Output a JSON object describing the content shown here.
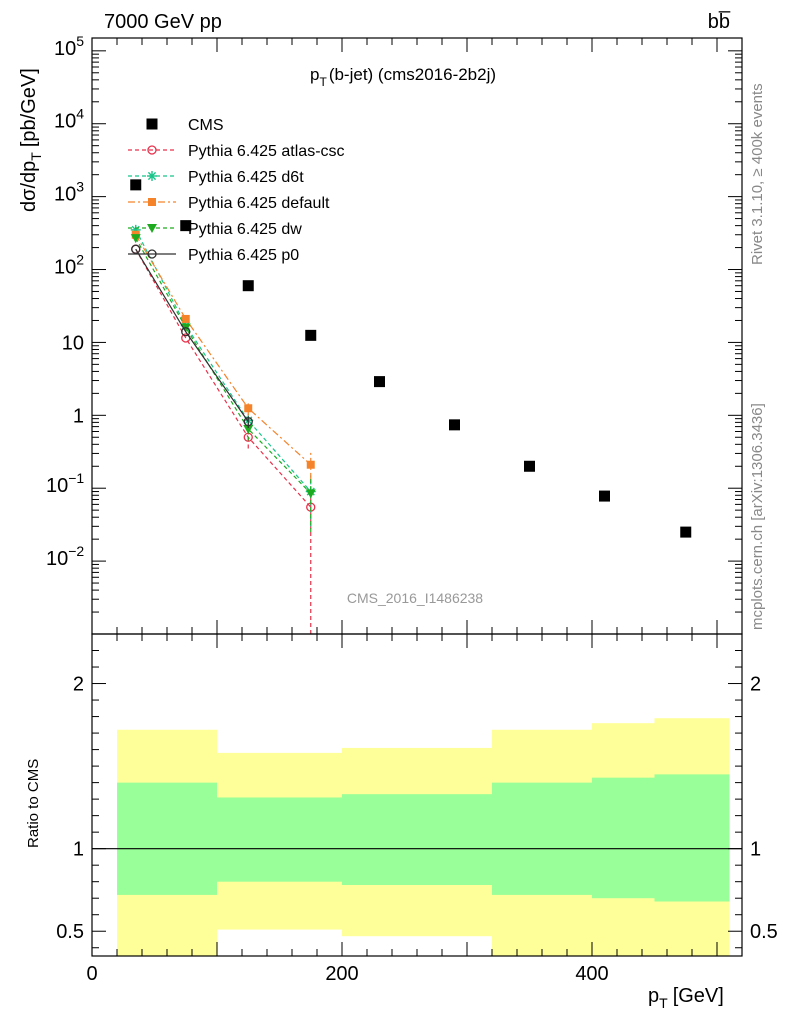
{
  "header": {
    "energy_label": "7000 GeV pp",
    "process_label": "bb̅"
  },
  "side_labels": {
    "rivet": "Rivet 3.1.10, ≥ 400k events",
    "mcplots": "mcplots.cern.ch [arXiv:1306.3436]"
  },
  "plot_title": {
    "main": "p",
    "sub": "T",
    "rest": "(b-jet) (cms2016-2b2j)"
  },
  "watermark": "CMS_2016_I1486238",
  "axes": {
    "ylabel_main": "dσ/dp",
    "ylabel_sub": "T",
    "ylabel_unit": "[pb/GeV]",
    "xlabel_main": "p",
    "xlabel_sub": "T",
    "xlabel_unit": "[GeV]",
    "ratio_ylabel": "Ratio to CMS"
  },
  "colors": {
    "atlas_csc": "#e8304a",
    "d6t": "#19c48a",
    "default": "#f5832a",
    "dw": "#1eaa1e",
    "p0": "#303030",
    "band_inner": "#99ff99",
    "band_outer": "#ffff99"
  },
  "chart_data": [
    {
      "type": "scatter",
      "log_y": true,
      "xlim": [
        0,
        520
      ],
      "ylim": [
        0.001,
        150000
      ],
      "xticks": [
        0,
        200,
        400
      ],
      "yticks": [
        {
          "value": 100000,
          "base": "10",
          "exp": "5"
        },
        {
          "value": 10000,
          "base": "10",
          "exp": "4"
        },
        {
          "value": 1000,
          "base": "10",
          "exp": "3"
        },
        {
          "value": 100,
          "base": "10",
          "exp": "2"
        },
        {
          "value": 10,
          "base": "10",
          "exp": ""
        },
        {
          "value": 1,
          "base": "1",
          "exp": ""
        },
        {
          "value": 0.1,
          "base": "10",
          "exp": "−1"
        },
        {
          "value": 0.01,
          "base": "10",
          "exp": "−2"
        }
      ],
      "legend_position": "top-left",
      "series": [
        {
          "name": "CMS",
          "key": "cms",
          "style": "data",
          "x": [
            35,
            75,
            125,
            175,
            230,
            290,
            350,
            410,
            475
          ],
          "y": [
            1450,
            400,
            60,
            12.5,
            2.9,
            0.74,
            0.2,
            0.078,
            0.025
          ]
        },
        {
          "name": "Pythia 6.425 atlas-csc",
          "key": "atlas_csc",
          "style": "circle-open",
          "dash": "4,3",
          "x": [
            35,
            75,
            125,
            175
          ],
          "y": [
            190,
            11.5,
            0.5,
            0.055
          ],
          "err_lo": [
            0,
            0,
            0.15,
            0.054
          ],
          "err_hi": [
            0,
            0,
            0.15,
            0.03
          ]
        },
        {
          "name": "Pythia 6.425 d6t",
          "key": "d6t",
          "style": "star",
          "dash": "4,3",
          "x": [
            35,
            75,
            125,
            175
          ],
          "y": [
            350,
            17,
            0.85,
            0.09
          ],
          "err_lo": [
            0,
            0,
            0.2,
            0.06
          ],
          "err_hi": [
            0,
            0,
            0.2,
            0.06
          ]
        },
        {
          "name": "Pythia 6.425 default",
          "key": "default",
          "style": "square",
          "dash": "7,3,2,3",
          "x": [
            35,
            75,
            125,
            175
          ],
          "y": [
            300,
            21,
            1.25,
            0.21
          ],
          "err_lo": [
            0,
            0,
            0.25,
            0.08
          ],
          "err_hi": [
            0,
            0,
            0.25,
            0.1
          ]
        },
        {
          "name": "Pythia 6.425 dw",
          "key": "dw",
          "style": "triangle-down",
          "dash": "4,3",
          "x": [
            35,
            75,
            125,
            175
          ],
          "y": [
            270,
            16,
            0.65,
            0.085
          ],
          "err_lo": [
            0,
            0,
            0.2,
            0.06
          ],
          "err_hi": [
            0,
            0,
            0.2,
            0.06
          ]
        },
        {
          "name": "Pythia 6.425 p0",
          "key": "p0",
          "style": "circle-open-solid",
          "dash": "",
          "x": [
            35,
            75,
            125
          ],
          "y": [
            190,
            14,
            0.82
          ],
          "err_lo": [
            0,
            0,
            0.15
          ],
          "err_hi": [
            0,
            0,
            0.15
          ]
        }
      ]
    },
    {
      "type": "area",
      "title": "",
      "ylabel": "Ratio to CMS",
      "xlim": [
        0,
        520
      ],
      "ylim": [
        0.35,
        2.3
      ],
      "yticks": [
        0.5,
        1,
        2
      ],
      "xticks": [
        0,
        200,
        400
      ],
      "bins": [
        {
          "x0": 20,
          "x1": 100,
          "inner_lo": 0.72,
          "inner_hi": 1.4,
          "outer_lo": 0.3,
          "outer_hi": 1.72
        },
        {
          "x0": 100,
          "x1": 200,
          "inner_lo": 0.8,
          "inner_hi": 1.31,
          "outer_lo": 0.51,
          "outer_hi": 1.58
        },
        {
          "x0": 200,
          "x1": 320,
          "inner_lo": 0.78,
          "inner_hi": 1.33,
          "outer_lo": 0.47,
          "outer_hi": 1.61
        },
        {
          "x0": 320,
          "x1": 400,
          "inner_lo": 0.72,
          "inner_hi": 1.4,
          "outer_lo": 0.3,
          "outer_hi": 1.72
        },
        {
          "x0": 400,
          "x1": 450,
          "inner_lo": 0.7,
          "inner_hi": 1.43,
          "outer_lo": 0.3,
          "outer_hi": 1.76
        },
        {
          "x0": 450,
          "x1": 510,
          "inner_lo": 0.68,
          "inner_hi": 1.45,
          "outer_lo": 0.3,
          "outer_hi": 1.79
        }
      ],
      "reference_line": 1
    }
  ]
}
